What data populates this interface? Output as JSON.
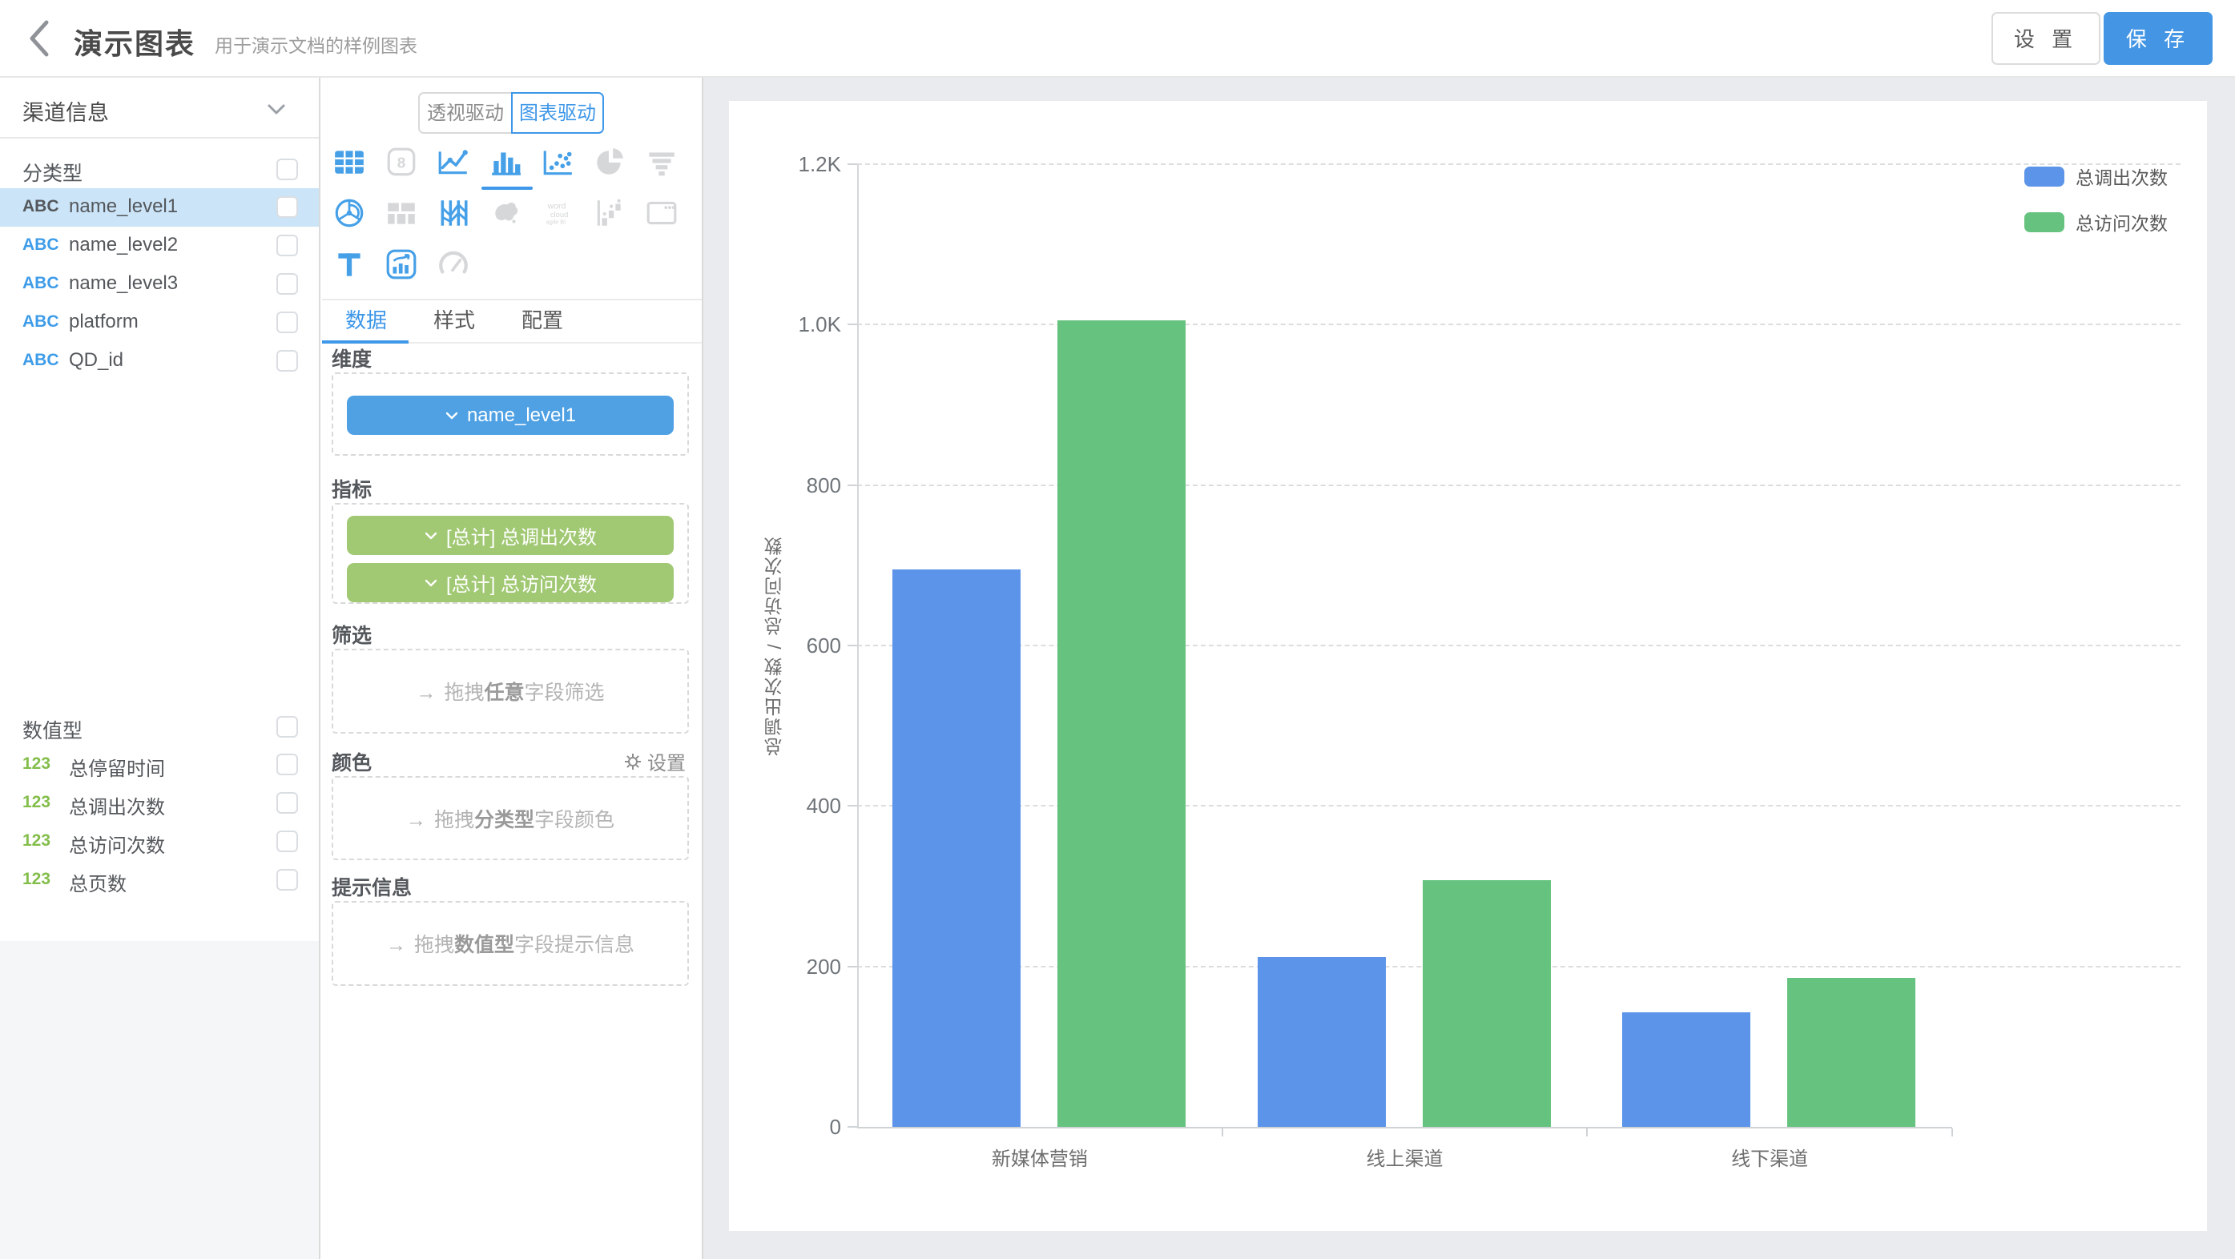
{
  "header": {
    "title": "演示图表",
    "subtitle": "用于演示文档的样例图表",
    "settings_label": "设 置",
    "save_label": "保 存"
  },
  "sidebar": {
    "dataset_name": "渠道信息",
    "sections": [
      {
        "label": "分类型",
        "badge": "ABC",
        "badge_class": "abc",
        "fields": [
          {
            "name": "name_level1",
            "selected": true
          },
          {
            "name": "name_level2",
            "selected": false
          },
          {
            "name": "name_level3",
            "selected": false
          },
          {
            "name": "platform",
            "selected": false
          },
          {
            "name": "QD_id",
            "selected": false
          }
        ]
      },
      {
        "label": "数值型",
        "badge": "123",
        "badge_class": "num",
        "fields": [
          {
            "name": "总停留时间",
            "selected": false
          },
          {
            "name": "总调出次数",
            "selected": false
          },
          {
            "name": "总访问次数",
            "selected": false
          },
          {
            "name": "总页数",
            "selected": false
          }
        ]
      }
    ]
  },
  "panel": {
    "mode_toggle": [
      {
        "label": "透视驱动",
        "active": false
      },
      {
        "label": "图表驱动",
        "active": true
      }
    ],
    "chart_type_icons": [
      {
        "name": "table-icon",
        "enabled": true,
        "selected": false
      },
      {
        "name": "metric-card-icon",
        "enabled": false,
        "selected": false
      },
      {
        "name": "line-chart-icon",
        "enabled": true,
        "selected": false
      },
      {
        "name": "bar-chart-icon",
        "enabled": true,
        "selected": true
      },
      {
        "name": "scatter-plot-icon",
        "enabled": true,
        "selected": false
      },
      {
        "name": "pie-chart-icon",
        "enabled": false,
        "selected": false
      },
      {
        "name": "funnel-chart-icon",
        "enabled": false,
        "selected": false
      },
      {
        "name": "radar-chart-icon",
        "enabled": true,
        "selected": false
      },
      {
        "name": "treemap-icon",
        "enabled": false,
        "selected": false
      },
      {
        "name": "parallel-coordinates-icon",
        "enabled": true,
        "selected": false
      },
      {
        "name": "china-map-icon",
        "enabled": false,
        "selected": false
      },
      {
        "name": "word-cloud-icon",
        "enabled": false,
        "selected": false
      },
      {
        "name": "waterfall-chart-icon",
        "enabled": false,
        "selected": false
      },
      {
        "name": "iframe-embed-icon",
        "enabled": false,
        "selected": false
      },
      {
        "name": "text-label-icon",
        "enabled": true,
        "selected": false
      },
      {
        "name": "indicator-card-icon",
        "enabled": true,
        "selected": false
      },
      {
        "name": "gauge-icon",
        "enabled": false,
        "selected": false
      }
    ],
    "tabs": [
      {
        "label": "数据",
        "active": true
      },
      {
        "label": "样式",
        "active": false
      },
      {
        "label": "配置",
        "active": false
      }
    ],
    "sections": {
      "dimension": {
        "label": "维度",
        "chips": [
          {
            "text": "name_level1",
            "color": "#4fa1e4"
          }
        ]
      },
      "measure": {
        "label": "指标",
        "chips": [
          {
            "text": "[总计] 总调出次数",
            "color": "#a1c873"
          },
          {
            "text": "[总计] 总访问次数",
            "color": "#a1c873"
          }
        ]
      },
      "filter": {
        "label": "筛选",
        "hint_pre": "拖拽",
        "hint_bold": "任意",
        "hint_post": "字段筛选"
      },
      "color": {
        "label": "颜色",
        "action": "设置",
        "hint_pre": "拖拽",
        "hint_bold": "分类型",
        "hint_post": "字段颜色"
      },
      "tooltip": {
        "label": "提示信息",
        "hint_pre": "拖拽",
        "hint_bold": "数值型",
        "hint_post": "字段提示信息"
      }
    }
  },
  "chart_data": {
    "type": "bar",
    "title": "",
    "categories": [
      "新媒体营销",
      "线上渠道",
      "线下渠道"
    ],
    "series": [
      {
        "name": "总调出次数",
        "color": "#5b94e8",
        "values": [
          695,
          212,
          143
        ]
      },
      {
        "name": "总访问次数",
        "color": "#66c37f",
        "values": [
          1005,
          307,
          186
        ]
      }
    ],
    "xlabel": "",
    "ylabel": "总调出次数 / 总访问次数",
    "ylim": [
      0,
      1200
    ],
    "y_tick_values": [
      0,
      200,
      400,
      600,
      800,
      1000,
      1200
    ],
    "y_tick_labels": [
      "0",
      "200",
      "400",
      "600",
      "800",
      "1.0K",
      "1.2K"
    ],
    "grid": "horizontal-dashed",
    "legend_position": "top-right"
  }
}
